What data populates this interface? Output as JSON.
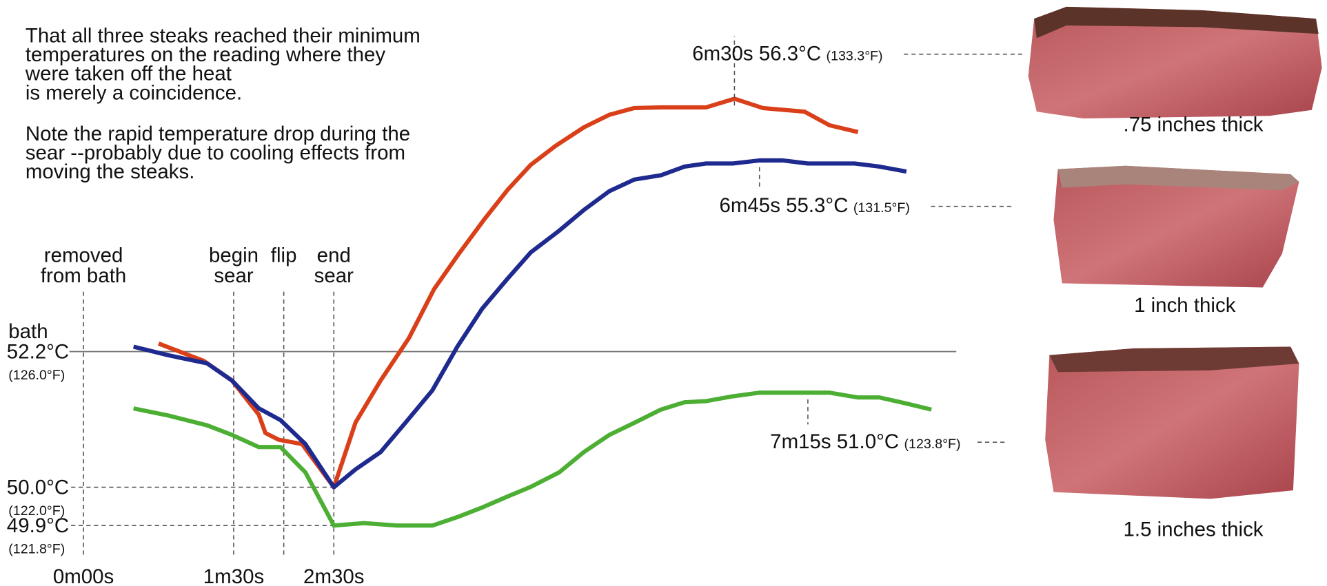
{
  "chart_data": {
    "type": "line",
    "notes": [
      [
        "That all three steaks reached their minimum",
        "temperatures on the reading where they",
        "were taken off the heat",
        "is merely a coincidence."
      ],
      [
        "Note the rapid temperature drop during the",
        "sear --probably due to cooling effects from",
        "moving the steaks."
      ]
    ],
    "xlim": [
      -50,
      745
    ],
    "xticks": [
      {
        "value": 0,
        "label": "0m00s"
      },
      {
        "value": 90,
        "label": "1m30s"
      },
      {
        "value": 150,
        "label": "2m30s"
      }
    ],
    "ylim": [
      48.4,
      57.9
    ],
    "yticks": [
      {
        "value": 52.2,
        "label": "52.2°C"
      },
      {
        "value": 50.0,
        "label": "50.0°C"
      }
    ],
    "ytick_notes": [
      "(126.0°F)",
      "(122.0°F)"
    ],
    "y2lim": [
      49.4,
      54.25
    ],
    "y2ticks": [
      {
        "value": 49.9,
        "label": "49.9°C"
      }
    ],
    "y2tick_notes": [
      "(121.8°F)"
    ],
    "reference_line": {
      "label": "bath",
      "value": 52.2
    },
    "events": [
      {
        "x": 0,
        "lines": [
          "removed",
          "from bath"
        ]
      },
      {
        "x": 90,
        "lines": [
          "begin",
          "sear"
        ]
      },
      {
        "x": 120,
        "lines": [
          "flip"
        ]
      },
      {
        "x": 150,
        "lines": [
          "end",
          "sear"
        ]
      }
    ],
    "series": [
      {
        "name": ".75 inches thick",
        "color": "#d9401a",
        "x": [
          45,
          72,
          89,
          105,
          109,
          117,
          131,
          150,
          163,
          178,
          195,
          210,
          225,
          240,
          254,
          268,
          283,
          300,
          315,
          330,
          346,
          373,
          390,
          407,
          432,
          447,
          464
        ],
        "values": [
          52.33,
          52.05,
          51.73,
          51.18,
          50.88,
          50.77,
          50.7,
          50.0,
          51.05,
          51.73,
          52.42,
          53.21,
          53.79,
          54.34,
          54.82,
          55.23,
          55.54,
          55.84,
          56.04,
          56.15,
          56.16,
          56.16,
          56.3,
          56.15,
          56.09,
          55.87,
          55.76
        ],
        "peak": {
          "x": 390,
          "value": 56.3,
          "label": "6m30s 56.3°C",
          "note": "(133.3°F)"
        }
      },
      {
        "name": "1 inch thick",
        "color": "#1f2a8f",
        "x": [
          30,
          51,
          74,
          89,
          105,
          118,
          133,
          150,
          163,
          178,
          193,
          209,
          224,
          239,
          254,
          268,
          285,
          300,
          315,
          330,
          346,
          360,
          373,
          389,
          405,
          419,
          434,
          462,
          477,
          493
        ],
        "values": [
          52.28,
          52.14,
          52.01,
          51.73,
          51.28,
          51.09,
          50.7,
          50.0,
          50.29,
          50.57,
          51.05,
          51.57,
          52.28,
          52.9,
          53.38,
          53.81,
          54.16,
          54.5,
          54.8,
          54.99,
          55.06,
          55.2,
          55.25,
          55.25,
          55.3,
          55.3,
          55.25,
          55.25,
          55.2,
          55.12
        ],
        "peak": {
          "x": 405,
          "value": 55.3,
          "label": "6m45s 55.3°C",
          "note": "(131.5°F)"
        }
      },
      {
        "name": "1.5 inches thick",
        "color": "#4caf34",
        "axis": "y2",
        "x": [
          30,
          51,
          74,
          89,
          105,
          118,
          133,
          150,
          168,
          188,
          209,
          224,
          239,
          254,
          268,
          285,
          300,
          315,
          330,
          346,
          360,
          373,
          389,
          405,
          419,
          434,
          447,
          464,
          477,
          493,
          508
        ],
        "values": [
          50.87,
          50.81,
          50.73,
          50.65,
          50.55,
          50.55,
          50.34,
          49.9,
          49.92,
          49.9,
          49.9,
          49.97,
          50.05,
          50.14,
          50.22,
          50.34,
          50.51,
          50.65,
          50.75,
          50.86,
          50.92,
          50.93,
          50.97,
          51.0,
          51.0,
          51.0,
          51.0,
          50.96,
          50.96,
          50.91,
          50.86
        ],
        "peak": {
          "x": 434,
          "value": 51.0,
          "label": "7m15s 51.0°C",
          "note": "(123.8°F)"
        }
      }
    ]
  }
}
